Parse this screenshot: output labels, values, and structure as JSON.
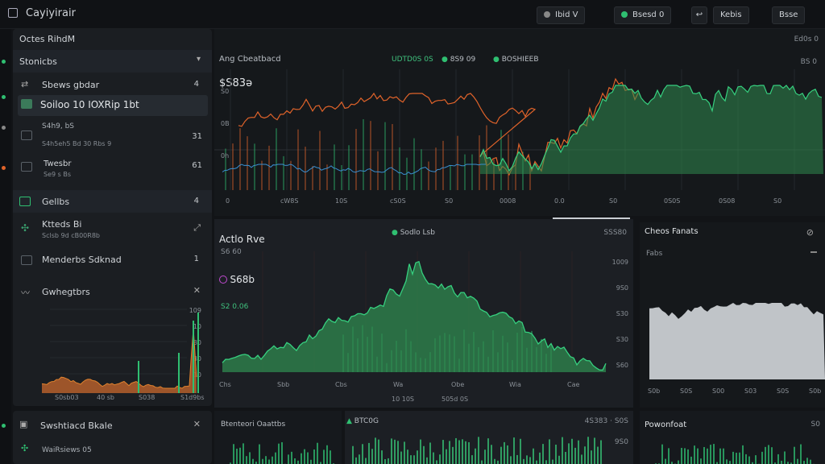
{
  "app": {
    "title": "Cayiyirair"
  },
  "toolbar": {
    "btn1": "Ibid V",
    "btn2": "Bsesd 0",
    "btn3": "Kebis",
    "btn4": "Bsse",
    "corner": "Ebds 7:"
  },
  "sidebar": {
    "header": "Octes RihdM",
    "section1": {
      "title": "Stonicbs"
    },
    "item1": {
      "title": "Sbews gbdar",
      "count": "4"
    },
    "item2": {
      "title": "Soiloo 10 IOXRip 1bt"
    },
    "item3": {
      "title": "S4h9, bS",
      "sub": "S4h5eh5 Bd 30 Rbs 9",
      "count": "31"
    },
    "item4": {
      "title": "Twesbr",
      "sub": "Se9 s Bs",
      "count": "61"
    },
    "section2": {
      "title": "Gellbs",
      "count": "4"
    },
    "item5": {
      "title": "Ktteds Bi",
      "sub": "Sclsb 9d cB00R8b"
    },
    "item6": {
      "title": "Menderbs Sdknad",
      "count": "1"
    },
    "section3": {
      "title": "Gwhegtbrs"
    },
    "minichart_yticks": [
      "109",
      "10",
      "30",
      "30",
      "10"
    ],
    "minichart_xticks": [
      "S0sb03",
      "40 sb",
      "S038",
      "S1d9bs"
    ],
    "section4": {
      "title": "Swshtiacd Bkale"
    },
    "item7": {
      "title": "WaiRsiews 05"
    }
  },
  "main_chart": {
    "title": "Ang Cbeatbacd",
    "value": "$S83ə",
    "legend": [
      "UDTD0S 0S",
      "8S9 09",
      "BOSHIEEB"
    ],
    "yticks": [
      "S0",
      "0B",
      "0h"
    ],
    "xticks": [
      "0",
      "cW8S",
      "10S",
      "cS0S",
      "S0",
      "0008",
      "0.0",
      "S0",
      "0S0S",
      "0S08",
      "S0"
    ],
    "right_label": "BS 0",
    "corner_label": "Ed0s 0"
  },
  "active": {
    "title": "Actlo Rve",
    "sub1": "S6 60",
    "value": "S68b",
    "sub2": "S2 0.06",
    "header_center": "Sodlo Lsb",
    "header_right": "SSS80",
    "yticks": [
      "1009",
      "9S0",
      "S30",
      "S30",
      "S60"
    ],
    "xticks": [
      "Chs",
      "Sbb",
      "Cbs",
      "Wa",
      "Obe",
      "Wia",
      "Cae"
    ],
    "xsub": [
      "10 10S",
      "505d 0S"
    ]
  },
  "overview": {
    "title": "Cheos Fanats",
    "sub": "Fabs",
    "xticks": [
      "S0b",
      "S0S",
      "S00",
      "S03",
      "S0S",
      "S0b"
    ]
  },
  "bottom": {
    "left_title": "Btenteori Oaattbs",
    "mid_title": "BTC0G",
    "mid_right": "4S383 · S0S",
    "mid_tick": "9S0",
    "right_title": "Powonfoat",
    "right_tick": "S0"
  },
  "colors": {
    "green": "#2fbf71",
    "orange": "#e0632a",
    "blue": "#3a8fd0",
    "bg": "#121417"
  }
}
